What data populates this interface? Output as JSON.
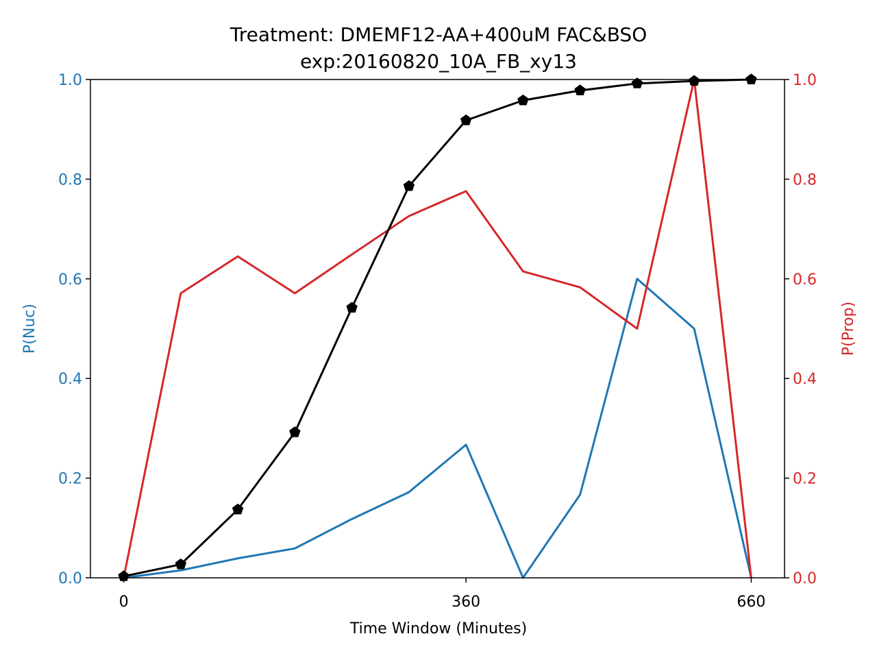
{
  "chart_data": {
    "type": "line",
    "title": "Treatment: DMEMF12-AA+400uM FAC&BSO",
    "subtitle": "exp:20160820_10A_FB_xy13",
    "xlabel": "Time Window (Minutes)",
    "ylabel_left": "P(Nuc)",
    "ylabel_right": "P(Prop)",
    "xlim": [
      -35,
      695
    ],
    "ylim_left": [
      0,
      1
    ],
    "ylim_right": [
      0,
      1
    ],
    "x_ticks": [
      0,
      360,
      660
    ],
    "y_ticks_left": [
      "0.0",
      "0.2",
      "0.4",
      "0.6",
      "0.8",
      "1.0"
    ],
    "y_ticks_right": [
      "0.0",
      "0.2",
      "0.4",
      "0.6",
      "0.8",
      "1.0"
    ],
    "grid": false,
    "colors": {
      "left_axis": "#1f77b4",
      "right_axis": "#d62728",
      "cumulative": "#000000"
    },
    "x": [
      0,
      60,
      120,
      180,
      240,
      300,
      360,
      420,
      480,
      540,
      600,
      660
    ],
    "series": [
      {
        "axis": "left",
        "color": "#1f77b4",
        "marker": "none",
        "values": [
          0.0,
          0.015,
          0.039,
          0.059,
          0.118,
          0.172,
          0.267,
          0.0,
          0.167,
          0.6,
          0.5,
          0.0
        ]
      },
      {
        "axis": "right",
        "color": "#d62728",
        "marker": "none",
        "values": [
          0.0,
          0.571,
          0.645,
          0.571,
          0.649,
          0.726,
          0.776,
          0.615,
          0.583,
          0.5,
          1.0,
          0.0
        ]
      },
      {
        "axis": "left",
        "color": "#000000",
        "marker": "pentagon",
        "values": [
          0.003,
          0.027,
          0.137,
          0.292,
          0.542,
          0.786,
          0.918,
          0.958,
          0.978,
          0.992,
          0.997,
          1.0
        ]
      }
    ]
  }
}
